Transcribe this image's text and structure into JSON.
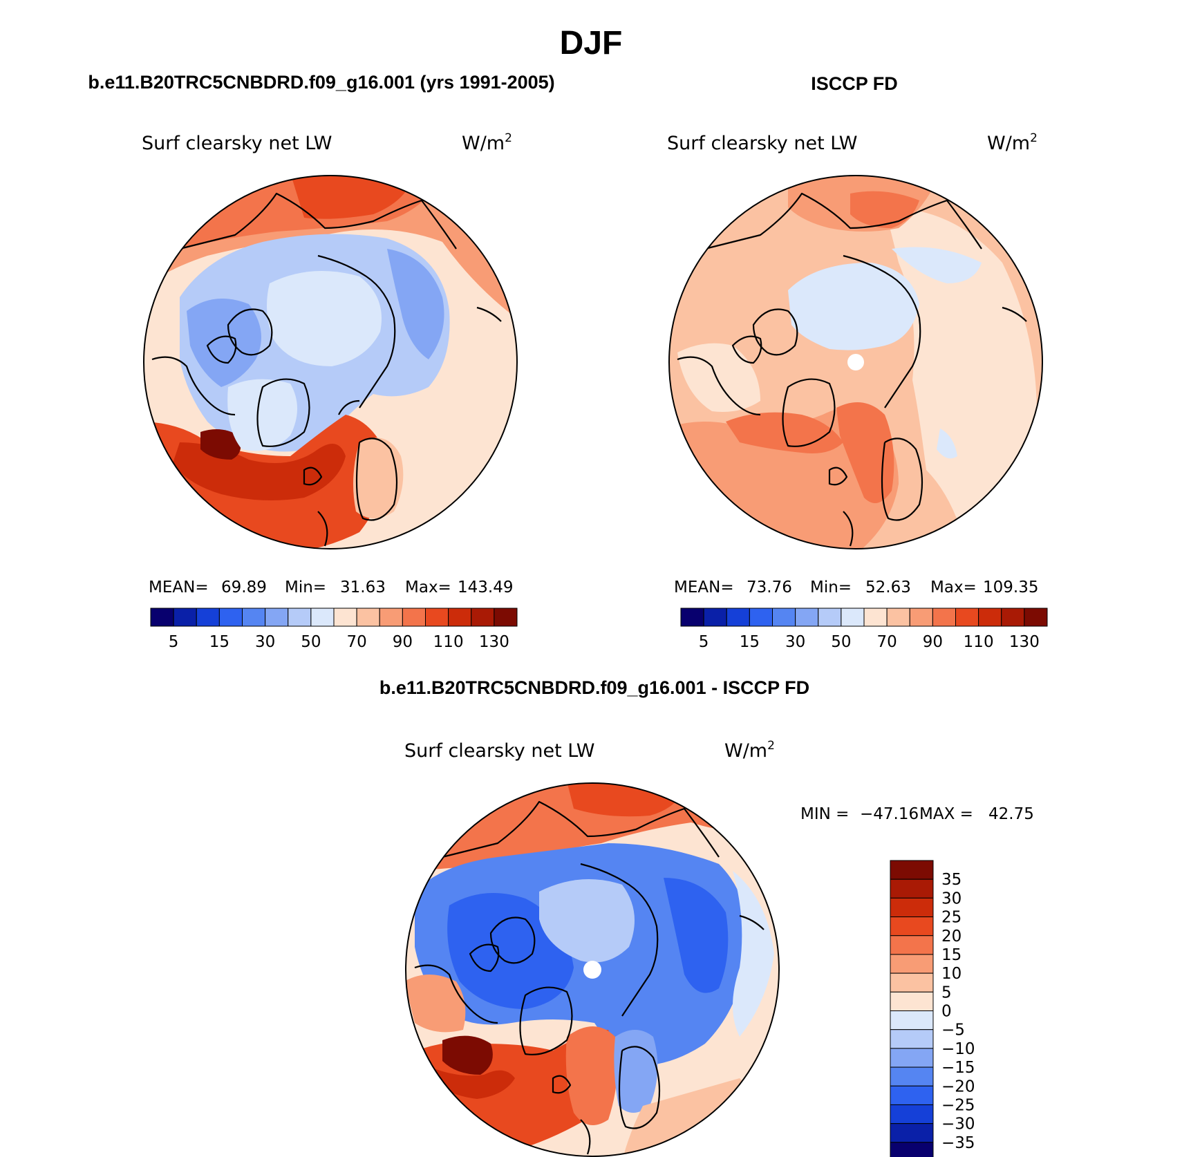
{
  "page": {
    "title": "DJF",
    "model_title": "b.e11.B20TRC5CNBDRD.f09_g16.001 (yrs 1991-2005)",
    "obs_title": "ISCCP FD",
    "diff_title": "b.e11.B20TRC5CNBDRD.f09_g16.001 - ISCCP FD"
  },
  "panels": [
    {
      "id": "model",
      "variable": "Surf clearsky net LW",
      "units_base": "W/m",
      "units_exp": "2",
      "stats": {
        "mean_label": "MEAN=",
        "mean": "69.89",
        "min_label": "Min=",
        "min": "31.63",
        "max_label": "Max=",
        "max": "143.49"
      }
    },
    {
      "id": "obs",
      "variable": "Surf clearsky net LW",
      "units_base": "W/m",
      "units_exp": "2",
      "stats": {
        "mean_label": "MEAN=",
        "mean": "73.76",
        "min_label": "Min=",
        "min": "52.63",
        "max_label": "Max=",
        "max": "109.35"
      }
    },
    {
      "id": "diff",
      "variable": "Surf clearsky net LW",
      "units_base": "W/m",
      "units_exp": "2",
      "stats": {
        "min_label": "MIN =",
        "min": "−47.16",
        "max_label": "MAX =",
        "max": "42.75"
      }
    }
  ],
  "colorbar_abs": {
    "colors": [
      "#08006e",
      "#0a20a8",
      "#1540d8",
      "#2e62f0",
      "#5585f2",
      "#84a6f4",
      "#b5cbf8",
      "#dbe8fb",
      "#fde4d2",
      "#fbc2a2",
      "#f89c75",
      "#f3744b",
      "#e8491f",
      "#cc2c0a",
      "#a91a05",
      "#7c0b02"
    ],
    "labels": [
      "5",
      "15",
      "30",
      "50",
      "70",
      "90",
      "110",
      "130"
    ]
  },
  "colorbar_diff": {
    "colors": [
      "#7c0b02",
      "#a91a05",
      "#cc2c0a",
      "#e8491f",
      "#f3744b",
      "#f89c75",
      "#fbc2a2",
      "#fde4d2",
      "#dbe8fb",
      "#b5cbf8",
      "#84a6f4",
      "#5585f2",
      "#2e62f0",
      "#1540d8",
      "#0a20a8",
      "#08006e"
    ],
    "labels": [
      "35",
      "30",
      "25",
      "20",
      "15",
      "10",
      "5",
      "0",
      "−5",
      "−10",
      "−15",
      "−20",
      "−25",
      "−30",
      "−35"
    ]
  },
  "map_colors": {
    "dark_red": "#7c0b02",
    "red": "#cc2c0a",
    "orange": "#e8491f",
    "salmon": "#f3744b",
    "light_salmon": "#f89c75",
    "peach": "#fbc2a2",
    "cream": "#fde4d2",
    "pale_blue": "#dbe8fb",
    "light_blue": "#b5cbf8",
    "mid_blue": "#84a6f4",
    "blue": "#5585f2",
    "bright_blue": "#2e62f0",
    "deep_blue": "#1540d8"
  }
}
